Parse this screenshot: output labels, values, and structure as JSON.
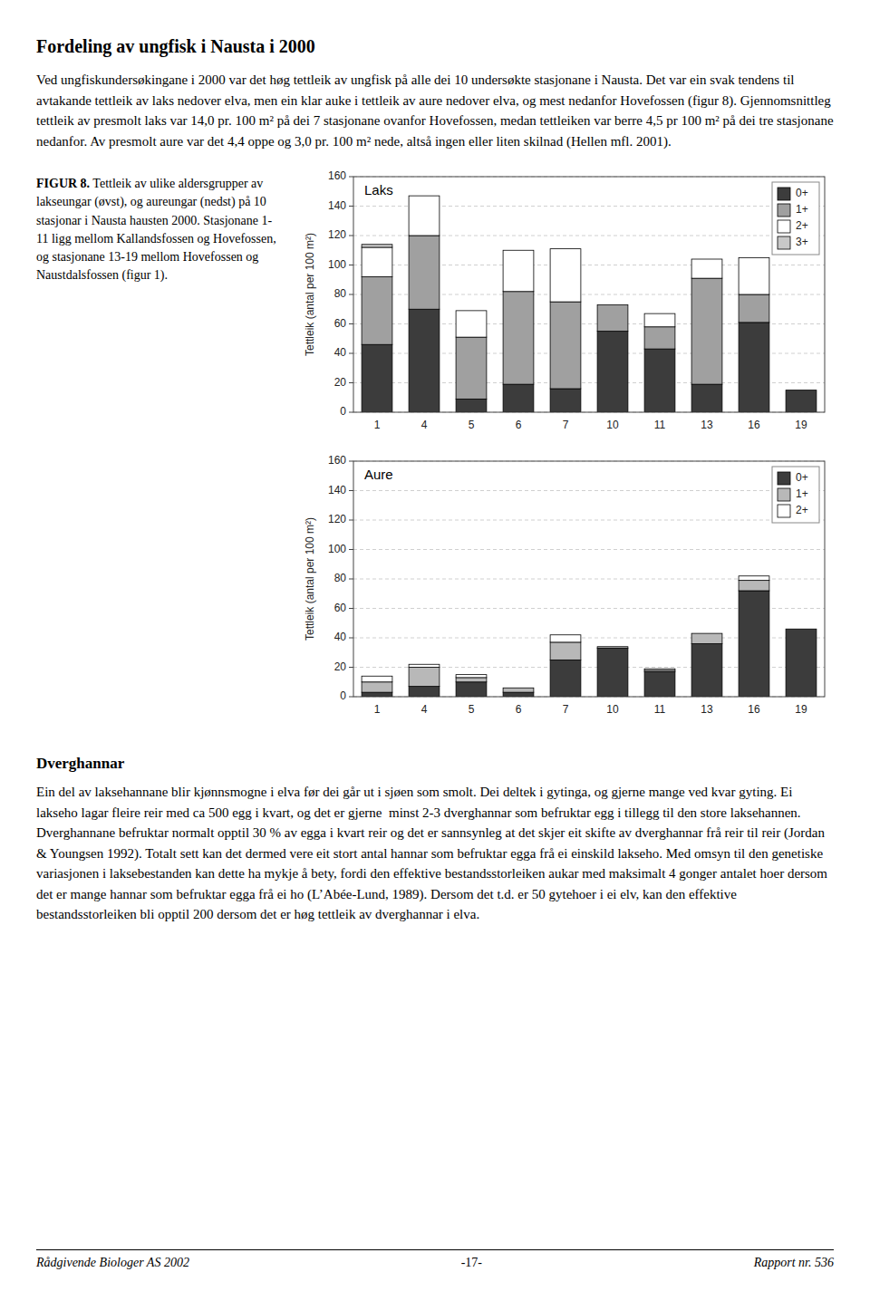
{
  "page_title": "Fordeling av ungfisk i Nausta i 2000",
  "paragraphs": [
    "Ved ungfiskundersøkingane i 2000 var det høg tettleik av ungfisk på alle dei 10 undersøkte stasjonane i Nausta. Det var ein svak tendens til avtakande tettleik av laks nedover elva, men ein klar auke i tettleik av aure nedover elva, og mest nedanfor Hovefossen (figur 8). Gjennomsnittleg tettleik av presmolt laks var 14,0 pr. 100 m² på dei 7 stasjonane ovanfor Hovefossen, medan tettleiken var berre 4,5 pr 100 m² på dei tre stasjonane nedanfor. Av presmolt aure var det 4,4 oppe og 3,0 pr. 100 m² nede, altså ingen eller liten skilnad (Hellen mfl. 2001).",
    "Ein del av laksehannane blir kjønnsmogne i elva før dei går ut i sjøen som smolt. Dei deltek i gytinga, og gjerne mange ved kvar gyting. Ei lakseho lagar fleire reir med ca 500 egg i kvart, og det er gjerne  minst 2-3 dverghannar som befruktar egg i tillegg til den store laksehannen. Dverghannane befruktar normalt opptil 30 % av egga i kvart reir og det er sannsynleg at det skjer eit skifte av dverghannar frå reir til reir (Jordan & Youngsen 1992). Totalt sett kan det dermed vere eit stort antal hannar som befruktar egga frå ei einskild lakseho. Med omsyn til den genetiske variasjonen i laksebestanden kan dette ha mykje å bety, fordi den effektive bestandsstorleiken aukar med maksimalt 4 gonger antalet hoer dersom det er mange hannar som befruktar egga frå ei ho (L’Abée-Lund, 1989). Dersom det t.d. er 50 gytehoer i ei elv, kan den effektive bestandsstorleiken bli opptil 200 dersom det er høg tettleik av dverghannar i elva."
  ],
  "caption_label": "FIGUR 8.",
  "caption": " Tettleik av ulike aldersgrupper av lakseungar (øvst), og aureungar (nedst) på 10 stasjonar i Nausta hausten 2000. Stasjonane 1-11 ligg mellom Kallandsfossen og Hovefossen, og stasjonane 13-19 mellom Hovefossen og Naustdalsfossen (figur 1).",
  "section_title": "Dverghannar",
  "footer_left": "Rådgivende Biologer AS 2002",
  "footer_center": "-17-",
  "footer_right": "Rapport nr. 536",
  "chart_data": [
    {
      "type": "bar",
      "stacked": true,
      "title": "Laks",
      "categories": [
        "1",
        "4",
        "5",
        "6",
        "7",
        "10",
        "11",
        "13",
        "16",
        "19"
      ],
      "series": [
        {
          "name": "0+",
          "color": "#3c3c3c",
          "values": [
            46,
            70,
            9,
            19,
            16,
            55,
            43,
            19,
            61,
            15
          ]
        },
        {
          "name": "1+",
          "color": "#a0a0a0",
          "values": [
            46,
            50,
            42,
            63,
            59,
            18,
            15,
            72,
            19,
            0
          ]
        },
        {
          "name": "2+",
          "color": "#ffffff",
          "values": [
            20,
            27,
            18,
            28,
            36,
            0,
            9,
            13,
            25,
            0
          ]
        },
        {
          "name": "3+",
          "color": "#c8c8c8",
          "values": [
            2,
            0,
            0,
            0,
            0,
            0,
            0,
            0,
            0,
            0
          ]
        }
      ],
      "ylabel": "Tettleik (antal per 100 m²)",
      "ylim": [
        0,
        160
      ],
      "yticks": [
        0,
        20,
        40,
        60,
        80,
        100,
        120,
        140,
        160
      ],
      "grid": true,
      "legend": "upper right"
    },
    {
      "type": "bar",
      "stacked": true,
      "title": "Aure",
      "categories": [
        "1",
        "4",
        "5",
        "6",
        "7",
        "10",
        "11",
        "13",
        "16",
        "19"
      ],
      "series": [
        {
          "name": "0+",
          "color": "#3c3c3c",
          "values": [
            3,
            7,
            10,
            3,
            25,
            33,
            17,
            36,
            72,
            46
          ]
        },
        {
          "name": "1+",
          "color": "#b8b8b8",
          "values": [
            7,
            13,
            3,
            3,
            12,
            1,
            1,
            7,
            7,
            0
          ]
        },
        {
          "name": "2+",
          "color": "#ffffff",
          "values": [
            4,
            2,
            2,
            0,
            5,
            0,
            1,
            0,
            3,
            0
          ]
        }
      ],
      "ylabel": "Tettleik (antal per 100 m²)",
      "ylim": [
        0,
        160
      ],
      "yticks": [
        0,
        20,
        40,
        60,
        80,
        100,
        120,
        140,
        160
      ],
      "grid": true,
      "legend": "upper right"
    }
  ]
}
